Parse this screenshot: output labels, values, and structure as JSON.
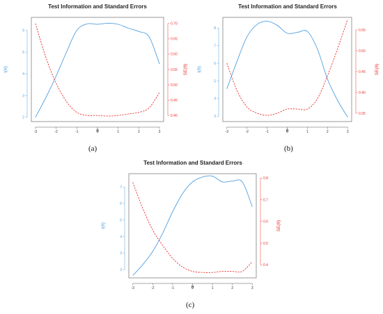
{
  "colors": {
    "information": "#4f9fe0",
    "standard_error": "#e8322e",
    "axis": "#555555"
  },
  "panels": [
    {
      "caption": "(a)"
    },
    {
      "caption": "(b)"
    },
    {
      "caption": "(c)"
    }
  ],
  "chart_data": [
    {
      "type": "line",
      "title": "Test Information and Standard Errors",
      "xlabel": "θ",
      "ylabel_left": "I(θ)",
      "ylabel_right": "SE(θ)",
      "xlim": [
        -3.2,
        3.2
      ],
      "ylim_left": [
        1.8,
        6.6
      ],
      "ylim_right": [
        0.38,
        0.72
      ],
      "x_ticks": [
        -3,
        -2,
        -1,
        0,
        1,
        2,
        3
      ],
      "y_ticks_left": [
        2,
        3,
        4,
        5,
        6
      ],
      "y_ticks_right": [
        0.4,
        0.45,
        0.5,
        0.55,
        0.6,
        0.65,
        0.7
      ],
      "y_tick_labels_right": [
        "0.40",
        "0.45",
        "0.50",
        "0.55",
        "0.60",
        "0.65",
        "0.70"
      ],
      "grid": false,
      "series": [
        {
          "name": "I(θ)",
          "axis": "left",
          "style": "solid",
          "x": [
            -3,
            -2.5,
            -2,
            -1.5,
            -1,
            -0.5,
            0,
            0.5,
            1,
            1.5,
            2,
            2.5,
            3
          ],
          "y": [
            2.0,
            2.9,
            3.9,
            5.0,
            6.0,
            6.3,
            6.28,
            6.33,
            6.28,
            6.1,
            5.95,
            5.7,
            4.45
          ]
        },
        {
          "name": "SE(θ)",
          "axis": "right",
          "style": "dashed",
          "x": [
            -3,
            -2.5,
            -2,
            -1.5,
            -1,
            -0.5,
            0,
            0.5,
            1,
            1.5,
            2,
            2.5,
            3
          ],
          "y": [
            0.7,
            0.59,
            0.505,
            0.445,
            0.41,
            0.4,
            0.4,
            0.398,
            0.4,
            0.405,
            0.41,
            0.425,
            0.475
          ]
        }
      ]
    },
    {
      "type": "line",
      "title": "Test Information and Standard Errors",
      "xlabel": "θ",
      "ylabel_left": "I(θ)",
      "ylabel_right": "SE(θ)",
      "xlim": [
        -3.2,
        3.2
      ],
      "ylim_left": [
        2.7,
        8.6
      ],
      "ylim_right": [
        0.33,
        0.58
      ],
      "x_ticks": [
        -3,
        -2,
        -1,
        0,
        1,
        2,
        3
      ],
      "y_ticks_left": [
        3,
        4,
        5,
        6,
        7,
        8
      ],
      "y_ticks_right": [
        0.35,
        0.4,
        0.45,
        0.5,
        0.55
      ],
      "y_tick_labels_right": [
        "0.35",
        "0.40",
        "0.45",
        "0.50",
        "0.55"
      ],
      "grid": false,
      "series": [
        {
          "name": "I(θ)",
          "axis": "left",
          "style": "solid",
          "x": [
            -3,
            -2.5,
            -2,
            -1.5,
            -1,
            -0.5,
            0,
            0.5,
            1,
            1.5,
            2,
            2.5,
            3
          ],
          "y": [
            4.55,
            6.1,
            7.5,
            8.2,
            8.38,
            8.15,
            7.7,
            7.75,
            7.8,
            6.8,
            5.1,
            3.9,
            2.95
          ]
        },
        {
          "name": "SE(θ)",
          "axis": "right",
          "style": "dashed",
          "x": [
            -3,
            -2.5,
            -2,
            -1.5,
            -1,
            -0.5,
            0,
            0.5,
            1,
            1.5,
            2,
            2.5,
            3
          ],
          "y": [
            0.47,
            0.405,
            0.365,
            0.35,
            0.345,
            0.35,
            0.36,
            0.36,
            0.36,
            0.385,
            0.44,
            0.505,
            0.575
          ]
        }
      ]
    },
    {
      "type": "line",
      "title": "Test Information and Standard Errors",
      "xlabel": "θ",
      "ylabel_left": "I(θ)",
      "ylabel_right": "SE(θ)",
      "xlim": [
        -3.2,
        3.2
      ],
      "ylim_left": [
        1.5,
        7.8
      ],
      "ylim_right": [
        0.34,
        0.82
      ],
      "x_ticks": [
        -3,
        -2,
        -1,
        0,
        1,
        2,
        3
      ],
      "y_ticks_left": [
        2,
        3,
        4,
        5,
        6,
        7
      ],
      "y_ticks_right": [
        0.4,
        0.5,
        0.6,
        0.7,
        0.8
      ],
      "y_tick_labels_right": [
        "0.4",
        "0.5",
        "0.6",
        "0.7",
        "0.8"
      ],
      "grid": false,
      "series": [
        {
          "name": "I(θ)",
          "axis": "left",
          "style": "solid",
          "x": [
            -3,
            -2.5,
            -2,
            -1.5,
            -1,
            -0.5,
            0,
            0.5,
            1,
            1.5,
            2,
            2.5,
            3
          ],
          "y": [
            1.65,
            2.3,
            3.1,
            4.2,
            5.5,
            6.6,
            7.3,
            7.6,
            7.65,
            7.3,
            7.35,
            7.3,
            5.8
          ]
        },
        {
          "name": "SE(θ)",
          "axis": "right",
          "style": "dashed",
          "x": [
            -3,
            -2.5,
            -2,
            -1.5,
            -1,
            -0.5,
            0,
            0.5,
            1,
            1.5,
            2,
            2.5,
            3
          ],
          "y": [
            0.78,
            0.66,
            0.56,
            0.49,
            0.43,
            0.39,
            0.37,
            0.365,
            0.365,
            0.37,
            0.37,
            0.37,
            0.415
          ]
        }
      ]
    }
  ]
}
